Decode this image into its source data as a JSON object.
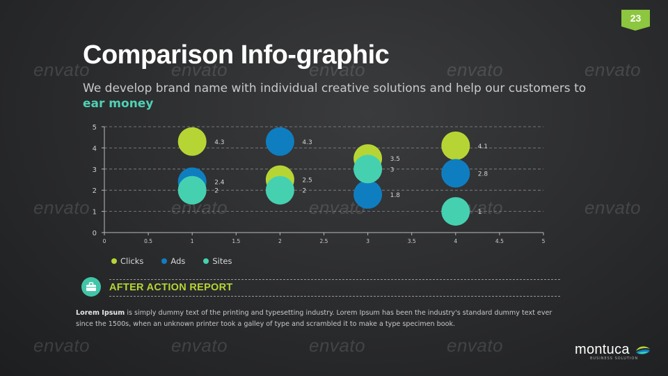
{
  "page": {
    "number": "23"
  },
  "header": {
    "title": "Comparison Info-graphic",
    "subtitle": "We develop brand name with individual creative solutions and help our customers to",
    "subtitle_accent": "ear money"
  },
  "watermark": {
    "text": "envato"
  },
  "chart_data": {
    "type": "scatter",
    "title": "",
    "xlabel": "",
    "ylabel": "",
    "xlim": [
      0,
      5
    ],
    "ylim": [
      0,
      5
    ],
    "x_ticks": [
      "0",
      "0.5",
      "1",
      "1.5",
      "2",
      "2.5",
      "3",
      "3.5",
      "4",
      "4.5",
      "5"
    ],
    "y_ticks": [
      "0",
      "1",
      "2",
      "3",
      "4",
      "5"
    ],
    "grid": "horizontal dashed",
    "legend_position": "bottom-left",
    "series": [
      {
        "name": "Clicks",
        "color": "#b6d534",
        "points": [
          {
            "x": 1,
            "y": 4.3,
            "label": "4.3"
          },
          {
            "x": 2,
            "y": 2.5,
            "label": "2.5"
          },
          {
            "x": 3,
            "y": 3.5,
            "label": "3.5"
          },
          {
            "x": 4,
            "y": 4.1,
            "label": "4.1"
          }
        ]
      },
      {
        "name": "Ads",
        "color": "#0f7ec1",
        "points": [
          {
            "x": 1,
            "y": 2.4,
            "label": "2.4"
          },
          {
            "x": 2,
            "y": 4.3,
            "label": "4.3"
          },
          {
            "x": 3,
            "y": 1.8,
            "label": "1.8"
          },
          {
            "x": 4,
            "y": 2.8,
            "label": "2.8"
          }
        ]
      },
      {
        "name": "Sites",
        "color": "#45d1b0",
        "points": [
          {
            "x": 1,
            "y": 2,
            "label": "2"
          },
          {
            "x": 2,
            "y": 2,
            "label": "2"
          },
          {
            "x": 3,
            "y": 3,
            "label": "3"
          },
          {
            "x": 4,
            "y": 1,
            "label": "1"
          }
        ]
      }
    ]
  },
  "report": {
    "title": "AFTER ACTION REPORT",
    "icon": "briefcase-icon",
    "body_bold": "Lorem Ipsum",
    "body": " is simply dummy text of the printing and typesetting industry. Lorem Ipsum has been the industry's standard dummy text ever since the 1500s, when an unknown printer took a galley of type and scrambled it to make a type specimen book."
  },
  "logo": {
    "name": "montuca",
    "tagline": "BUSINESS SOLUTION"
  }
}
